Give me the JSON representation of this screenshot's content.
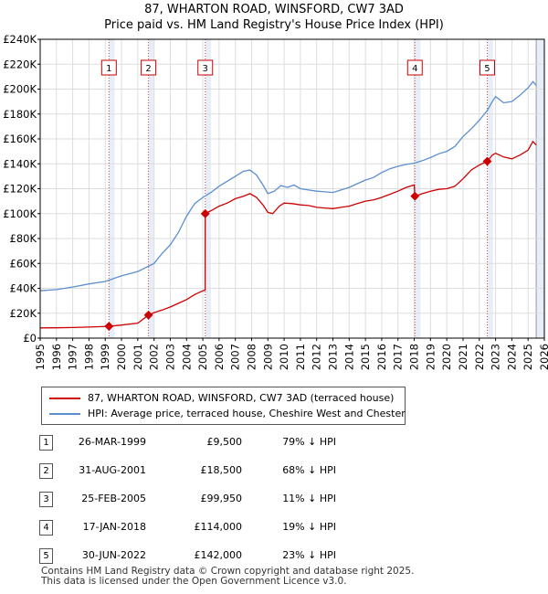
{
  "chart_data": {
    "type": "line",
    "title": "87, WHARTON ROAD, WINSFORD, CW7 3AD",
    "subtitle": "Price paid vs. HM Land Registry's House Price Index (HPI)",
    "xlim": [
      1995,
      2026
    ],
    "ylim": [
      0,
      240000
    ],
    "x_ticks": [
      1995,
      1996,
      1997,
      1998,
      1999,
      2000,
      2001,
      2002,
      2003,
      2004,
      2005,
      2006,
      2007,
      2008,
      2009,
      2010,
      2011,
      2012,
      2013,
      2014,
      2015,
      2016,
      2017,
      2018,
      2019,
      2020,
      2021,
      2022,
      2023,
      2024,
      2025,
      2026
    ],
    "y_ticks": [
      0,
      20000,
      40000,
      60000,
      80000,
      100000,
      120000,
      140000,
      160000,
      180000,
      200000,
      220000,
      240000
    ],
    "y_tick_labels": [
      "£0",
      "£20K",
      "£40K",
      "£60K",
      "£80K",
      "£100K",
      "£120K",
      "£140K",
      "£160K",
      "£180K",
      "£200K",
      "£220K",
      "£240K"
    ],
    "grid": true,
    "colors": {
      "property": "#cc0000",
      "hpi": "#5b8fd0",
      "sale_shade": "#e8eef8",
      "future_shade": "#e8eef8"
    },
    "series": [
      {
        "name": "87, WHARTON ROAD, WINSFORD, CW7 3AD (terraced house)",
        "color": "#cc0000",
        "points": [
          [
            1995.0,
            8200
          ],
          [
            1996.0,
            8300
          ],
          [
            1997.0,
            8500
          ],
          [
            1998.0,
            8900
          ],
          [
            1999.23,
            9500
          ],
          [
            2000.0,
            10500
          ],
          [
            2001.0,
            12000
          ],
          [
            2001.66,
            18500
          ],
          [
            2002.0,
            20500
          ],
          [
            2002.5,
            22500
          ],
          [
            2003.0,
            25000
          ],
          [
            2003.5,
            28000
          ],
          [
            2004.0,
            31000
          ],
          [
            2004.5,
            35000
          ],
          [
            2005.0,
            38000
          ],
          [
            2005.14,
            38500
          ],
          [
            2005.15,
            99950
          ],
          [
            2005.6,
            103000
          ],
          [
            2006.0,
            106000
          ],
          [
            2006.5,
            108500
          ],
          [
            2007.0,
            112000
          ],
          [
            2007.5,
            114000
          ],
          [
            2007.9,
            116000
          ],
          [
            2008.3,
            113000
          ],
          [
            2008.7,
            107000
          ],
          [
            2009.0,
            101000
          ],
          [
            2009.3,
            100000
          ],
          [
            2009.7,
            106000
          ],
          [
            2010.0,
            108500
          ],
          [
            2010.5,
            108000
          ],
          [
            2011.0,
            107000
          ],
          [
            2011.5,
            106500
          ],
          [
            2012.0,
            105000
          ],
          [
            2012.5,
            104500
          ],
          [
            2013.0,
            104000
          ],
          [
            2013.5,
            105000
          ],
          [
            2014.0,
            106000
          ],
          [
            2014.5,
            108000
          ],
          [
            2015.0,
            110000
          ],
          [
            2015.5,
            111000
          ],
          [
            2016.0,
            113000
          ],
          [
            2016.5,
            115500
          ],
          [
            2017.0,
            118000
          ],
          [
            2017.5,
            121000
          ],
          [
            2018.0,
            123000
          ],
          [
            2018.04,
            114000
          ],
          [
            2018.5,
            116000
          ],
          [
            2019.0,
            118000
          ],
          [
            2019.5,
            119500
          ],
          [
            2020.0,
            120000
          ],
          [
            2020.5,
            122000
          ],
          [
            2021.0,
            128000
          ],
          [
            2021.5,
            135000
          ],
          [
            2022.0,
            139000
          ],
          [
            2022.49,
            142000
          ],
          [
            2022.8,
            147000
          ],
          [
            2023.0,
            148500
          ],
          [
            2023.5,
            145500
          ],
          [
            2024.0,
            144000
          ],
          [
            2024.5,
            147000
          ],
          [
            2025.0,
            151000
          ],
          [
            2025.3,
            158000
          ],
          [
            2025.5,
            155000
          ]
        ]
      },
      {
        "name": "HPI: Average price, terraced house, Cheshire West and Chester",
        "color": "#5b8fd0",
        "points": [
          [
            1995.0,
            38000
          ],
          [
            1996.0,
            39000
          ],
          [
            1997.0,
            41000
          ],
          [
            1998.0,
            43500
          ],
          [
            1999.0,
            45500
          ],
          [
            2000.0,
            50000
          ],
          [
            2001.0,
            53500
          ],
          [
            2002.0,
            60000
          ],
          [
            2002.5,
            68000
          ],
          [
            2003.0,
            75000
          ],
          [
            2003.5,
            85000
          ],
          [
            2004.0,
            98000
          ],
          [
            2004.5,
            108000
          ],
          [
            2005.0,
            113000
          ],
          [
            2005.5,
            117000
          ],
          [
            2006.0,
            122000
          ],
          [
            2006.5,
            126000
          ],
          [
            2007.0,
            130000
          ],
          [
            2007.5,
            134000
          ],
          [
            2007.9,
            135000
          ],
          [
            2008.3,
            131000
          ],
          [
            2008.7,
            123000
          ],
          [
            2009.0,
            116000
          ],
          [
            2009.4,
            118000
          ],
          [
            2009.8,
            122500
          ],
          [
            2010.2,
            121000
          ],
          [
            2010.6,
            123000
          ],
          [
            2011.0,
            120000
          ],
          [
            2011.5,
            119000
          ],
          [
            2012.0,
            118000
          ],
          [
            2012.5,
            117500
          ],
          [
            2013.0,
            117000
          ],
          [
            2013.5,
            119000
          ],
          [
            2014.0,
            121000
          ],
          [
            2014.5,
            124000
          ],
          [
            2015.0,
            127000
          ],
          [
            2015.5,
            129000
          ],
          [
            2016.0,
            133000
          ],
          [
            2016.5,
            136000
          ],
          [
            2017.0,
            138000
          ],
          [
            2017.5,
            139500
          ],
          [
            2018.0,
            140500
          ],
          [
            2018.5,
            142500
          ],
          [
            2019.0,
            145000
          ],
          [
            2019.5,
            148000
          ],
          [
            2020.0,
            150000
          ],
          [
            2020.5,
            154000
          ],
          [
            2021.0,
            162000
          ],
          [
            2021.5,
            168000
          ],
          [
            2022.0,
            175000
          ],
          [
            2022.5,
            183000
          ],
          [
            2022.8,
            190000
          ],
          [
            2023.0,
            194000
          ],
          [
            2023.5,
            189000
          ],
          [
            2024.0,
            190000
          ],
          [
            2024.5,
            195000
          ],
          [
            2025.0,
            201000
          ],
          [
            2025.3,
            206000
          ],
          [
            2025.5,
            203000
          ]
        ]
      }
    ],
    "sales": [
      {
        "id": "1",
        "year": 1999.23,
        "price": 9500,
        "date": "26-MAR-1999",
        "price_label": "£9,500",
        "hpi_label": "79% ↓ HPI"
      },
      {
        "id": "2",
        "year": 2001.66,
        "price": 18500,
        "date": "31-AUG-2001",
        "price_label": "£18,500",
        "hpi_label": "68% ↓ HPI"
      },
      {
        "id": "3",
        "year": 2005.15,
        "price": 99950,
        "date": "25-FEB-2005",
        "price_label": "£99,950",
        "hpi_label": "11% ↓ HPI"
      },
      {
        "id": "4",
        "year": 2018.04,
        "price": 114000,
        "date": "17-JAN-2018",
        "price_label": "£114,000",
        "hpi_label": "19% ↓ HPI"
      },
      {
        "id": "5",
        "year": 2022.49,
        "price": 142000,
        "date": "30-JUN-2022",
        "price_label": "£142,000",
        "hpi_label": "23% ↓ HPI"
      }
    ],
    "future_start": 2025.5
  },
  "legend": {
    "property_label": "87, WHARTON ROAD, WINSFORD, CW7 3AD (terraced house)",
    "hpi_label": "HPI: Average price, terraced house, Cheshire West and Chester"
  },
  "footer": {
    "line1": "Contains HM Land Registry data © Crown copyright and database right 2025.",
    "line2": "This data is licensed under the Open Government Licence v3.0."
  }
}
